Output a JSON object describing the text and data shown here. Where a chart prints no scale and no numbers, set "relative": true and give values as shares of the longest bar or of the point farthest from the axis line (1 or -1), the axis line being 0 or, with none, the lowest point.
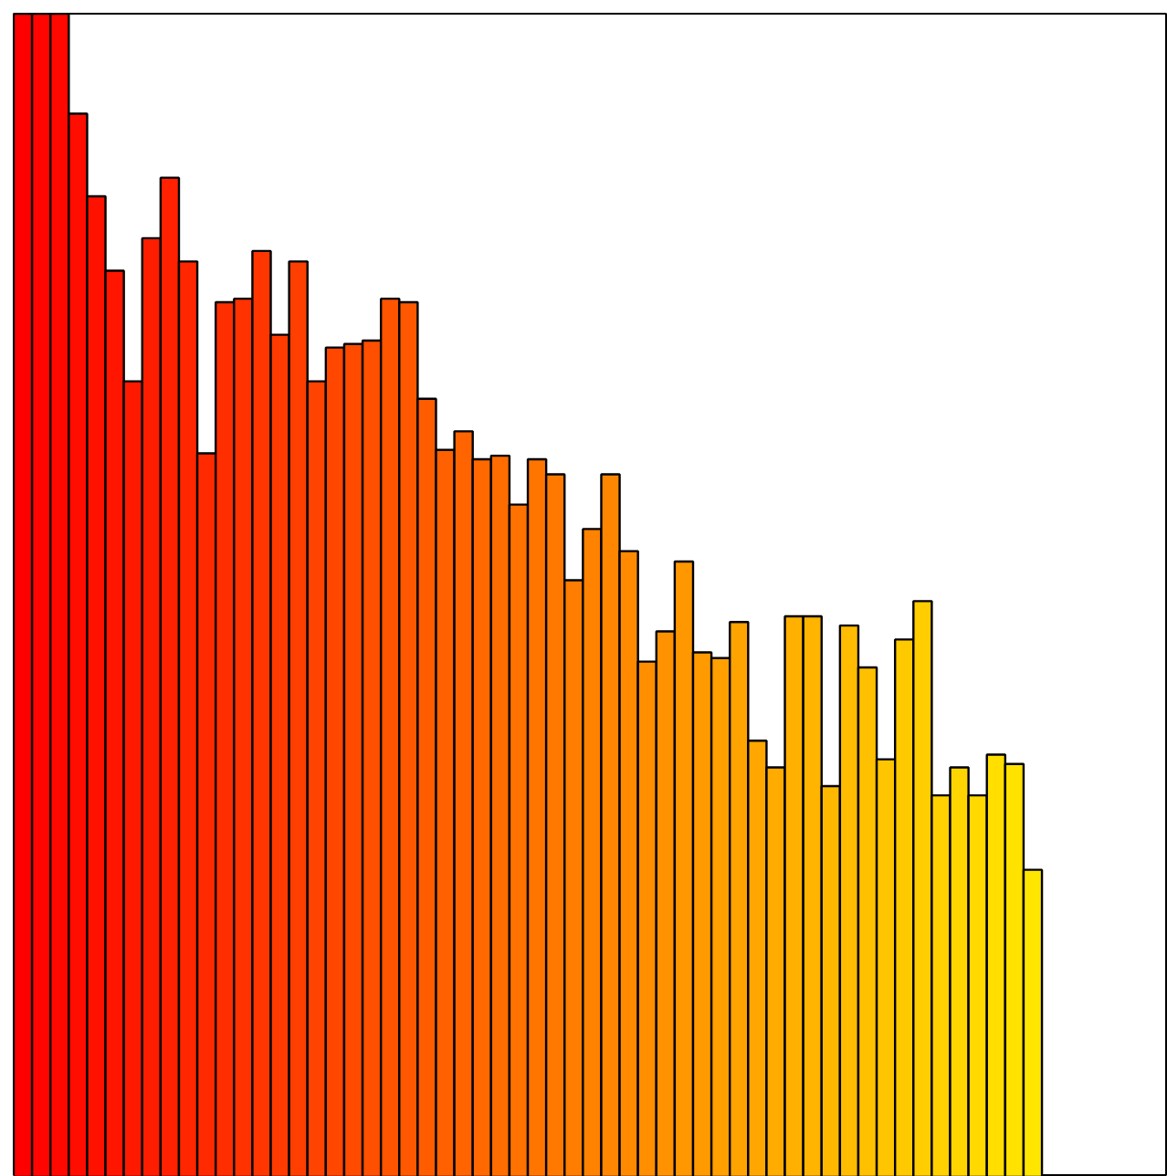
{
  "chart_data": {
    "type": "bar",
    "relative": true,
    "categories": [
      null,
      null,
      null,
      null,
      null,
      null,
      null,
      null,
      null,
      null,
      null,
      null,
      null,
      null,
      null,
      null,
      null,
      null,
      null,
      null,
      null,
      null,
      null,
      null,
      null,
      null,
      null,
      null,
      null,
      null,
      null,
      null,
      null,
      null,
      null,
      null,
      null,
      null,
      null,
      null,
      null,
      null,
      null,
      null,
      null,
      null,
      null,
      null,
      null,
      null,
      null,
      null,
      null,
      null,
      null,
      null
    ],
    "values": [
      1.0,
      1.0,
      1.0,
      0.914,
      0.843,
      0.779,
      0.684,
      0.807,
      0.859,
      0.787,
      0.622,
      0.752,
      0.755,
      0.796,
      0.724,
      0.787,
      0.684,
      0.713,
      0.716,
      0.719,
      0.755,
      0.752,
      0.669,
      0.625,
      0.641,
      0.617,
      0.62,
      0.578,
      0.617,
      0.604,
      0.513,
      0.557,
      0.604,
      0.538,
      0.443,
      0.469,
      0.529,
      0.451,
      0.446,
      0.477,
      0.375,
      0.352,
      0.482,
      0.482,
      0.336,
      0.474,
      0.438,
      0.359,
      0.462,
      0.495,
      0.328,
      0.352,
      0.328,
      0.363,
      0.355,
      0.264
    ],
    "colors": [
      "#ff0000",
      "#ff0400",
      "#ff0800",
      "#ff0d00",
      "#ff1100",
      "#ff1500",
      "#ff1900",
      "#ff1d00",
      "#ff2100",
      "#ff2600",
      "#ff2a00",
      "#ff2e00",
      "#ff3200",
      "#ff3600",
      "#ff3b00",
      "#ff3f00",
      "#ff4300",
      "#ff4700",
      "#ff4b00",
      "#ff4f00",
      "#ff5400",
      "#ff5800",
      "#ff5c00",
      "#ff6000",
      "#ff6400",
      "#ff6900",
      "#ff6d00",
      "#ff7100",
      "#ff7500",
      "#ff7900",
      "#ff7d00",
      "#ff8200",
      "#ff8600",
      "#ff8a00",
      "#ff8e00",
      "#ff9200",
      "#ff9700",
      "#ff9b00",
      "#ff9f00",
      "#ffa300",
      "#ffa700",
      "#ffab00",
      "#ffb000",
      "#ffb400",
      "#ffb800",
      "#ffbc00",
      "#ffc000",
      "#ffc500",
      "#ffc900",
      "#ffcd00",
      "#ffd100",
      "#ffd500",
      "#ffd900",
      "#ffde00",
      "#ffe200",
      "#ffe600"
    ]
  }
}
